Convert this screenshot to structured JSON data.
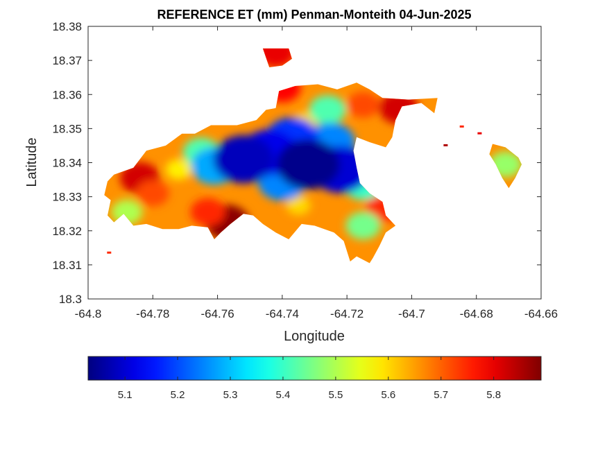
{
  "chart_data": {
    "type": "heatmap",
    "title": "REFERENCE ET (mm) Penman-Monteith 04-Jun-2025",
    "xlabel": "Longitude",
    "ylabel": "Latitude",
    "xlim": [
      -64.8,
      -64.66
    ],
    "ylim": [
      18.3,
      18.38
    ],
    "xticks": [
      -64.8,
      -64.78,
      -64.76,
      -64.74,
      -64.72,
      -64.7,
      -64.68,
      -64.66
    ],
    "xtick_labels": [
      "-64.8",
      "-64.78",
      "-64.76",
      "-64.74",
      "-64.72",
      "-64.7",
      "-64.68",
      "-64.66"
    ],
    "yticks": [
      18.3,
      18.31,
      18.32,
      18.33,
      18.34,
      18.35,
      18.36,
      18.37,
      18.38
    ],
    "ytick_labels": [
      "18.3",
      "18.31",
      "18.32",
      "18.33",
      "18.34",
      "18.35",
      "18.36",
      "18.37",
      "18.38"
    ],
    "colormap": "jet",
    "clim": [
      5.03,
      5.89
    ],
    "colorbar_ticks": [
      5.1,
      5.2,
      5.3,
      5.4,
      5.5,
      5.6,
      5.7,
      5.8
    ],
    "colorbar_tick_labels": [
      "5.1",
      "5.2",
      "5.3",
      "5.4",
      "5.5",
      "5.6",
      "5.7",
      "5.8"
    ],
    "colorbar_location": "bottom",
    "grid": false,
    "region_outline_lonlat": [
      [
        -64.792,
        18.3365
      ],
      [
        -64.786,
        18.3385
      ],
      [
        -64.782,
        18.3435
      ],
      [
        -64.776,
        18.345
      ],
      [
        -64.771,
        18.3485
      ],
      [
        -64.767,
        18.3485
      ],
      [
        -64.762,
        18.351
      ],
      [
        -64.754,
        18.351
      ],
      [
        -64.748,
        18.3525
      ],
      [
        -64.745,
        18.3555
      ],
      [
        -64.742,
        18.356
      ],
      [
        -64.741,
        18.361
      ],
      [
        -64.74,
        18.3685
      ],
      [
        -64.737,
        18.3705
      ],
      [
        -64.738,
        18.3735
      ],
      [
        -64.746,
        18.3735
      ],
      [
        -64.744,
        18.368
      ],
      [
        -64.74,
        18.3685
      ],
      [
        -64.741,
        18.361
      ],
      [
        -64.736,
        18.3625
      ],
      [
        -64.729,
        18.363
      ],
      [
        -64.723,
        18.3615
      ],
      [
        -64.717,
        18.3635
      ],
      [
        -64.713,
        18.3615
      ],
      [
        -64.709,
        18.359
      ],
      [
        -64.701,
        18.3585
      ],
      [
        -64.692,
        18.359
      ],
      [
        -64.693,
        18.3545
      ],
      [
        -64.697,
        18.3575
      ],
      [
        -64.703,
        18.3565
      ],
      [
        -64.705,
        18.3525
      ],
      [
        -64.706,
        18.3475
      ],
      [
        -64.708,
        18.3445
      ],
      [
        -64.713,
        18.346
      ],
      [
        -64.717,
        18.3475
      ],
      [
        -64.718,
        18.3435
      ],
      [
        -64.717,
        18.3385
      ],
      [
        -64.716,
        18.334
      ],
      [
        -64.713,
        18.331
      ],
      [
        -64.709,
        18.3285
      ],
      [
        -64.708,
        18.3245
      ],
      [
        -64.705,
        18.3215
      ],
      [
        -64.708,
        18.3195
      ],
      [
        -64.71,
        18.3155
      ],
      [
        -64.712,
        18.312
      ],
      [
        -64.713,
        18.3105
      ],
      [
        -64.717,
        18.3125
      ],
      [
        -64.719,
        18.311
      ],
      [
        -64.721,
        18.317
      ],
      [
        -64.724,
        18.3195
      ],
      [
        -64.73,
        18.3215
      ],
      [
        -64.734,
        18.322
      ],
      [
        -64.738,
        18.3175
      ],
      [
        -64.742,
        18.3195
      ],
      [
        -64.746,
        18.322
      ],
      [
        -64.749,
        18.3245
      ],
      [
        -64.752,
        18.325
      ],
      [
        -64.756,
        18.322
      ],
      [
        -64.759,
        18.3195
      ],
      [
        -64.761,
        18.3175
      ],
      [
        -64.763,
        18.321
      ],
      [
        -64.768,
        18.3215
      ],
      [
        -64.772,
        18.3205
      ],
      [
        -64.777,
        18.3205
      ],
      [
        -64.782,
        18.322
      ],
      [
        -64.786,
        18.3215
      ],
      [
        -64.789,
        18.325
      ],
      [
        -64.792,
        18.3225
      ],
      [
        -64.794,
        18.3245
      ],
      [
        -64.793,
        18.329
      ],
      [
        -64.795,
        18.3305
      ],
      [
        -64.794,
        18.3345
      ]
    ],
    "east_lobe_outline_lonlat": [
      [
        -64.675,
        18.3455
      ],
      [
        -64.671,
        18.3445
      ],
      [
        -64.667,
        18.3415
      ],
      [
        -64.666,
        18.3395
      ],
      [
        -64.668,
        18.3355
      ],
      [
        -64.67,
        18.3325
      ],
      [
        -64.672,
        18.3355
      ],
      [
        -64.674,
        18.3395
      ],
      [
        -64.676,
        18.3425
      ]
    ],
    "values_by_zone": [
      {
        "lon": -64.752,
        "lat": 18.341,
        "et": 5.08
      },
      {
        "lon": -64.744,
        "lat": 18.343,
        "et": 5.12
      },
      {
        "lon": -64.732,
        "lat": 18.3395,
        "et": 5.04
      },
      {
        "lon": -64.722,
        "lat": 18.338,
        "et": 5.1
      },
      {
        "lon": -64.761,
        "lat": 18.339,
        "et": 5.28
      },
      {
        "lon": -64.737,
        "lat": 18.347,
        "et": 5.18
      },
      {
        "lon": -64.725,
        "lat": 18.346,
        "et": 5.25
      },
      {
        "lon": -64.74,
        "lat": 18.3345,
        "et": 5.25
      },
      {
        "lon": -64.765,
        "lat": 18.343,
        "et": 5.42
      },
      {
        "lon": -64.726,
        "lat": 18.3555,
        "et": 5.42
      },
      {
        "lon": -64.715,
        "lat": 18.3335,
        "et": 5.4
      },
      {
        "lon": -64.671,
        "lat": 18.3395,
        "et": 5.48
      },
      {
        "lon": -64.715,
        "lat": 18.3215,
        "et": 5.45
      },
      {
        "lon": -64.788,
        "lat": 18.3255,
        "et": 5.5
      },
      {
        "lon": -64.772,
        "lat": 18.338,
        "et": 5.58
      },
      {
        "lon": -64.735,
        "lat": 18.3275,
        "et": 5.6
      },
      {
        "lon": -64.733,
        "lat": 18.352,
        "et": 5.6
      },
      {
        "lon": -64.78,
        "lat": 18.331,
        "et": 5.72
      },
      {
        "lon": -64.763,
        "lat": 18.3255,
        "et": 5.75
      },
      {
        "lon": -64.709,
        "lat": 18.3265,
        "et": 5.75
      },
      {
        "lon": -64.715,
        "lat": 18.357,
        "et": 5.72
      },
      {
        "lon": -64.74,
        "lat": 18.362,
        "et": 5.78
      },
      {
        "lon": -64.784,
        "lat": 18.3355,
        "et": 5.82
      },
      {
        "lon": -64.757,
        "lat": 18.3225,
        "et": 5.88
      },
      {
        "lon": -64.704,
        "lat": 18.356,
        "et": 5.82
      },
      {
        "lon": -64.742,
        "lat": 18.3725,
        "et": 5.8
      }
    ]
  }
}
